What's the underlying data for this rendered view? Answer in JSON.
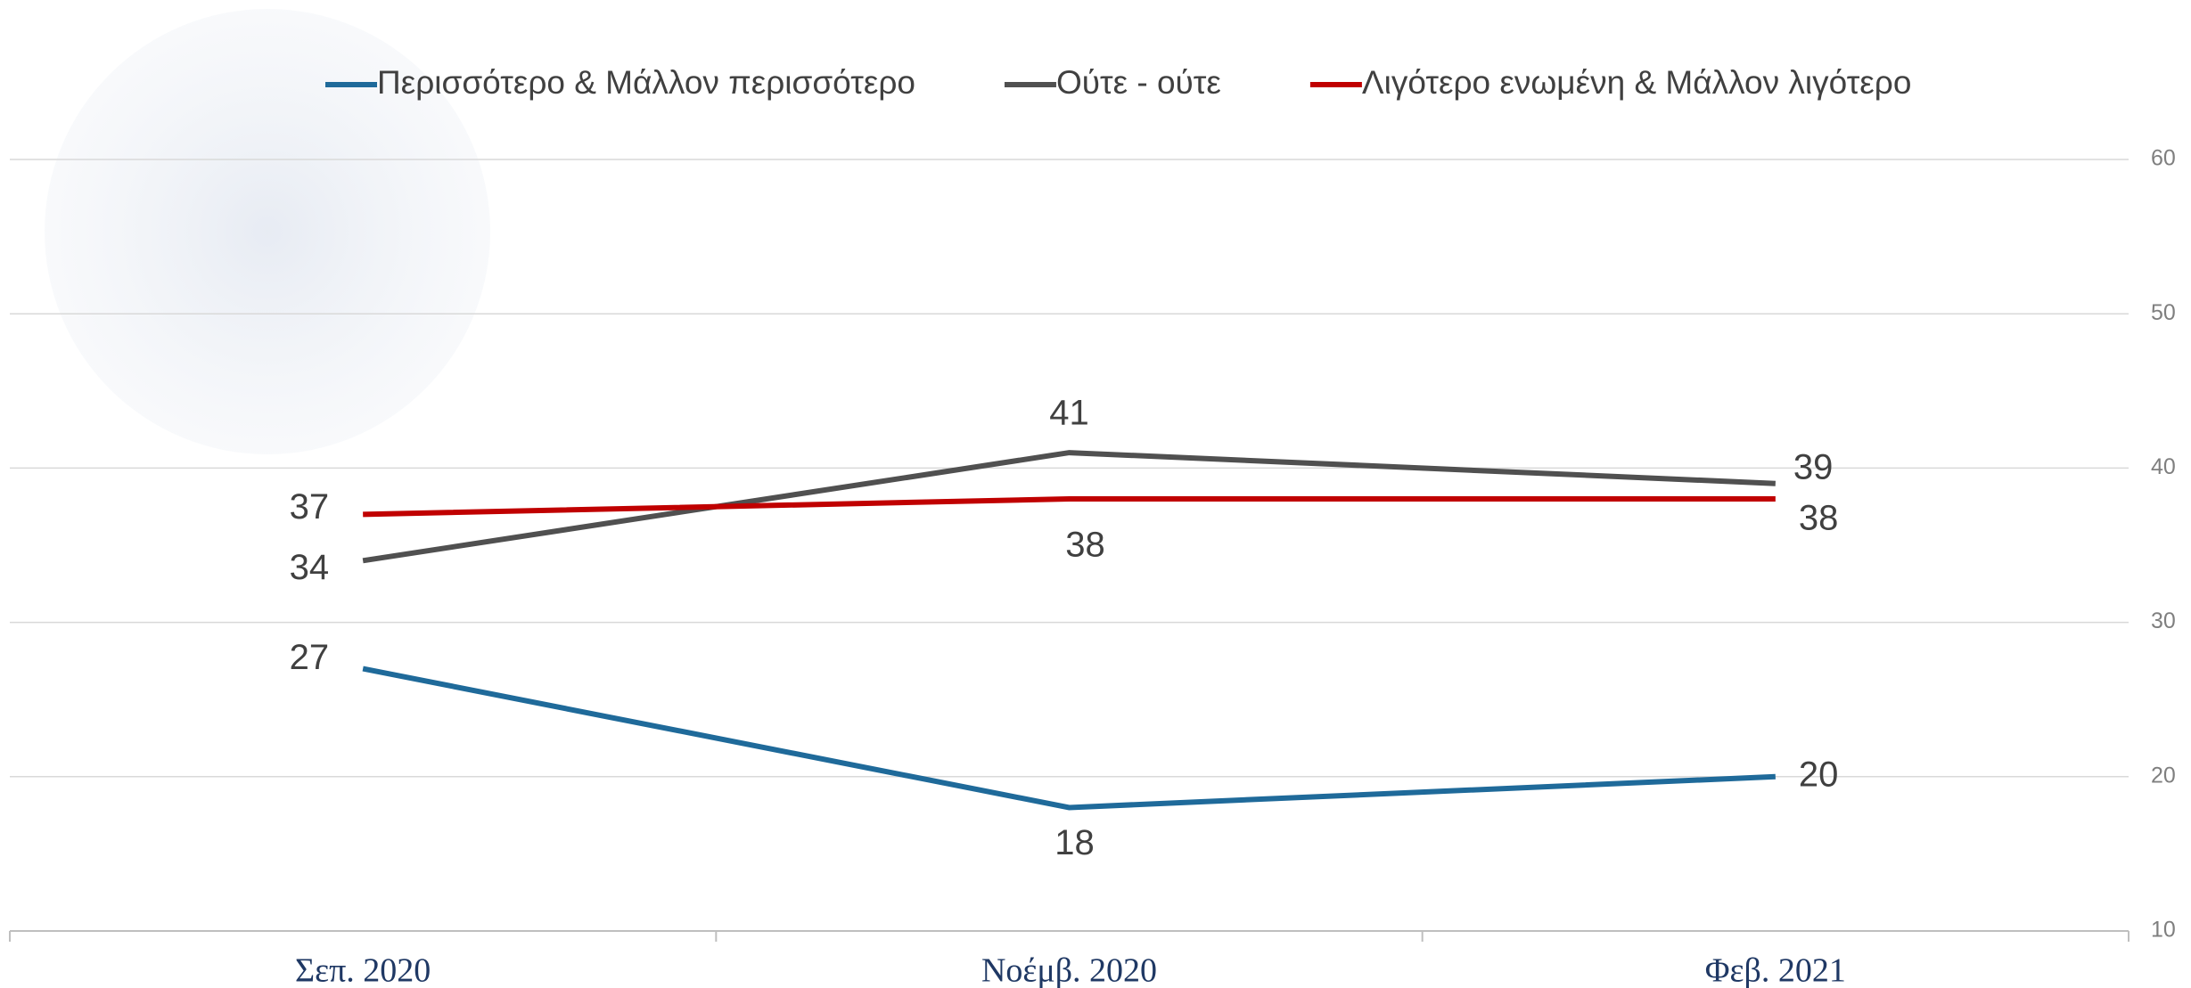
{
  "chart_data": {
    "type": "line",
    "categories": [
      "Σεπ. 2020",
      "Νοέμβ. 2020",
      "Φεβ. 2021"
    ],
    "series": [
      {
        "name": "Περισσότερο & Μάλλον περισσότερο",
        "color": "#1f6a9a",
        "values": [
          27,
          18,
          20
        ]
      },
      {
        "name": "Ούτε - ούτε",
        "color": "#505050",
        "values": [
          34,
          41,
          39
        ]
      },
      {
        "name": "Λιγότερο ενωμένη & Μάλλον λιγότερο",
        "color": "#c00000",
        "values": [
          37,
          38,
          38
        ]
      }
    ],
    "ylim": [
      10,
      60
    ],
    "yticks": [
      10,
      20,
      30,
      40,
      50,
      60
    ],
    "grid": true,
    "legend": "top"
  }
}
